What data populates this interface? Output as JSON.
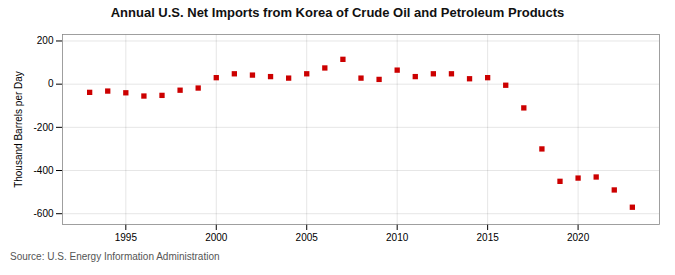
{
  "chart_data": {
    "type": "scatter",
    "title": "Annual U.S. Net Imports from Korea of Crude Oil and Petroleum Products",
    "ylabel": "Thousand Barrels per Day",
    "annotation": "Source: U.S. Energy Information Administration",
    "x": [
      1993,
      1994,
      1995,
      1996,
      1997,
      1998,
      1999,
      2000,
      2001,
      2002,
      2003,
      2004,
      2005,
      2006,
      2007,
      2008,
      2009,
      2010,
      2011,
      2012,
      2013,
      2014,
      2015,
      2016,
      2017,
      2018,
      2019,
      2020,
      2021,
      2022,
      2023
    ],
    "values": [
      -38,
      -32,
      -40,
      -55,
      -52,
      -28,
      -18,
      30,
      48,
      42,
      35,
      28,
      48,
      75,
      115,
      28,
      22,
      65,
      35,
      48,
      48,
      25,
      30,
      -5,
      -110,
      -300,
      -450,
      -435,
      -430,
      -490,
      -570
    ],
    "color": "#cc0000",
    "marker": "square",
    "xlim": [
      1991.5,
      2024.5
    ],
    "xticks": [
      1995,
      2000,
      2005,
      2010,
      2015,
      2020
    ],
    "ylim": [
      -650,
      230
    ],
    "yticks": [
      -600,
      -400,
      -200,
      0,
      200
    ],
    "grid": true
  }
}
